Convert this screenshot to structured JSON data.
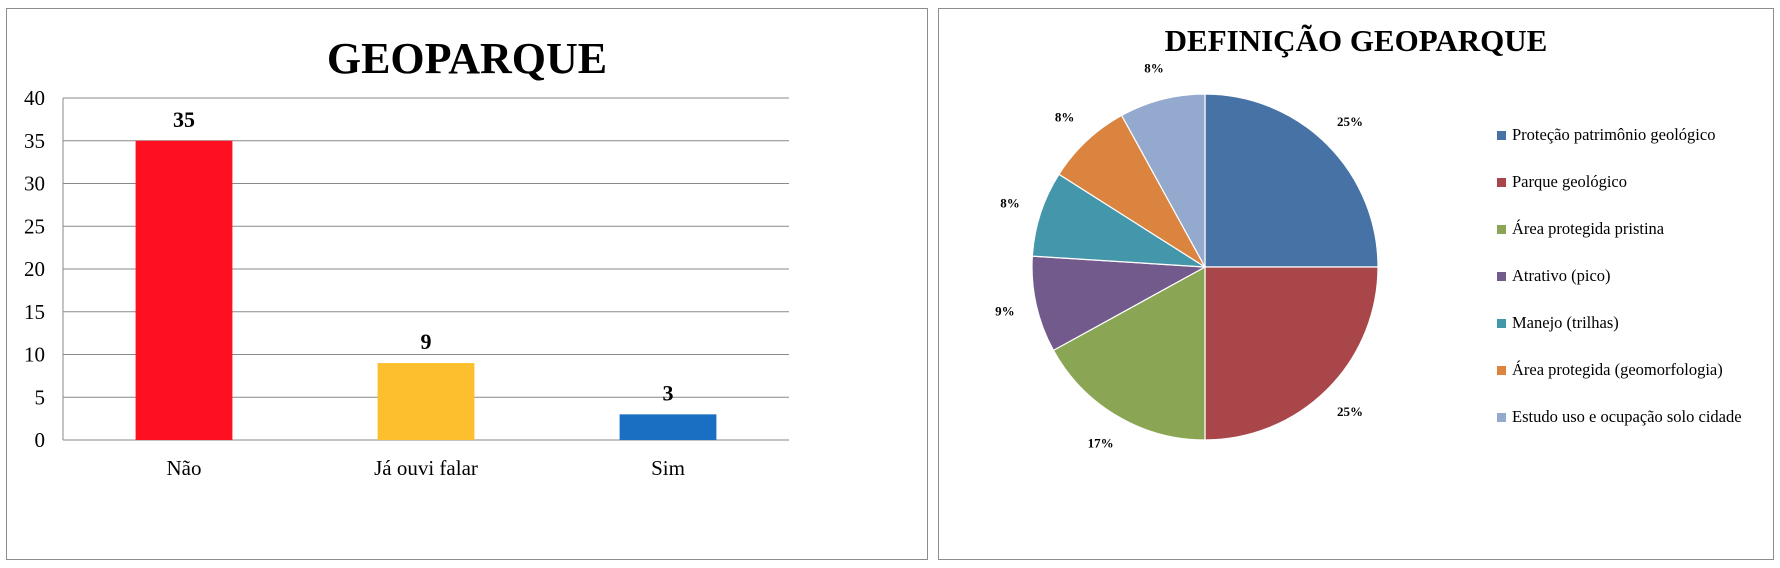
{
  "chart_data": [
    {
      "type": "bar",
      "title": "GEOPARQUE",
      "categories": [
        "Não",
        "Já ouvi falar",
        "Sim"
      ],
      "values": [
        35,
        9,
        3
      ],
      "colors": [
        "#ff1020",
        "#fdbf2d",
        "#1a6fc2"
      ],
      "data_labels": [
        "35",
        "9",
        "3"
      ],
      "ylim": [
        0,
        40
      ],
      "yticks": [
        "0",
        "5",
        "10",
        "15",
        "20",
        "25",
        "30",
        "35",
        "40"
      ],
      "xlabel": "",
      "ylabel": "",
      "grid": true,
      "legend": "none"
    },
    {
      "type": "pie",
      "title": "DEFINIÇÃO GEOPARQUE",
      "labels": [
        "Proteção patrimônio geológico",
        "Parque geológico",
        "Área protegida pristina",
        "Atrativo (pico)",
        "Manejo (trilhas)",
        "Área protegida (geomorfologia)",
        "Estudo uso e ocupação solo cidade"
      ],
      "values": [
        25,
        25,
        17,
        9,
        8,
        8,
        8
      ],
      "data_labels": [
        "25%",
        "25%",
        "17%",
        "9%",
        "8%",
        "8%",
        "8%"
      ],
      "colors": [
        "#4672a6",
        "#a9464a",
        "#8aa655",
        "#725a8c",
        "#4496ab",
        "#da843f",
        "#94a9ce"
      ],
      "legend": "right"
    }
  ]
}
